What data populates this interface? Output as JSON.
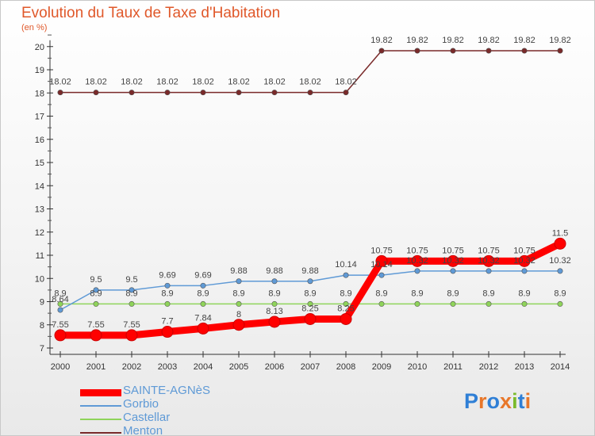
{
  "title": "Evolution du Taux de Taxe d'Habitation",
  "subtitle": "(en %)",
  "logo": {
    "text": "Proxiti",
    "colors": [
      "#2f7fd6",
      "#e8772a",
      "#2f7fd6",
      "#e8772a",
      "#7aba2a",
      "#2f7fd6",
      "#e8772a"
    ]
  },
  "chart_data": {
    "type": "line",
    "categories": [
      "2000",
      "2001",
      "2002",
      "2003",
      "2004",
      "2005",
      "2006",
      "2007",
      "2008",
      "2009",
      "2010",
      "2011",
      "2012",
      "2013",
      "2014"
    ],
    "ylim": [
      7,
      20
    ],
    "yticks": [
      "7",
      "8",
      "9",
      "10",
      "11",
      "12",
      "13",
      "14",
      "15",
      "16",
      "17",
      "18",
      "19",
      "20"
    ],
    "grid": false,
    "legend_position": "bottom-left",
    "series": [
      {
        "name": "SAINTE-AGNèS",
        "color": "#ff0000",
        "values": [
          7.55,
          7.55,
          7.55,
          7.7,
          7.84,
          8,
          8.13,
          8.25,
          8.25,
          10.75,
          10.75,
          10.75,
          10.75,
          10.75,
          11.5
        ],
        "labels": [
          "7.55",
          "7.55",
          "7.55",
          "7.7",
          "7.84",
          "8",
          "8.13",
          "8.25",
          "8.25",
          "10.75",
          "10.75",
          "10.75",
          "10.75",
          "10.75",
          "11.5"
        ]
      },
      {
        "name": "Gorbio",
        "color": "#5f9ad6",
        "values": [
          8.64,
          9.5,
          9.5,
          9.69,
          9.69,
          9.88,
          9.88,
          9.88,
          10.14,
          10.14,
          10.32,
          10.32,
          10.32,
          10.32,
          10.32
        ],
        "labels": [
          "8.64",
          "9.5",
          "9.5",
          "9.69",
          "9.69",
          "9.88",
          "9.88",
          "9.88",
          "10.14",
          "10.14",
          "10.32",
          "10.32",
          "10.32",
          "10.32",
          "10.32"
        ]
      },
      {
        "name": "Castellar",
        "color": "#8fd45a",
        "values": [
          8.9,
          8.9,
          8.9,
          8.9,
          8.9,
          8.9,
          8.9,
          8.9,
          8.9,
          8.9,
          8.9,
          8.9,
          8.9,
          8.9,
          8.9
        ],
        "labels": [
          "8.9",
          "8.9",
          "8.9",
          "8.9",
          "8.9",
          "8.9",
          "8.9",
          "8.9",
          "8.9",
          "8.9",
          "8.9",
          "8.9",
          "8.9",
          "8.9",
          "8.9"
        ]
      },
      {
        "name": "Menton",
        "color": "#7a2a2a",
        "values": [
          18.02,
          18.02,
          18.02,
          18.02,
          18.02,
          18.02,
          18.02,
          18.02,
          18.02,
          19.82,
          19.82,
          19.82,
          19.82,
          19.82,
          19.82
        ],
        "labels": [
          "18.02",
          "18.02",
          "18.02",
          "18.02",
          "18.02",
          "18.02",
          "18.02",
          "18.02",
          "18.02",
          "19.82",
          "19.82",
          "19.82",
          "19.82",
          "19.82",
          "19.82"
        ]
      }
    ]
  }
}
